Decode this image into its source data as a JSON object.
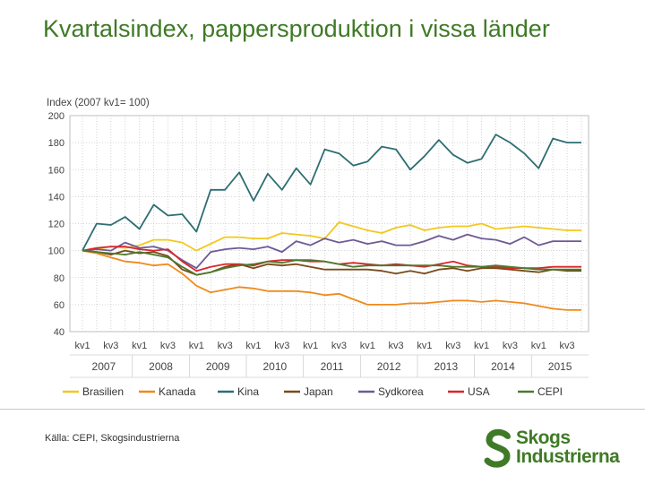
{
  "title": "Kvartalsindex, pappersproduktion i vissa länder",
  "source": "Källa: CEPI, Skogsindustrierna",
  "logo": {
    "line1": "Skogs",
    "line2": "Industrierna"
  },
  "chart_data": {
    "type": "line",
    "ylabel": "Index (2007 kv1= 100)",
    "ylim": [
      40,
      200
    ],
    "yticks": [
      40,
      60,
      80,
      100,
      120,
      140,
      160,
      180,
      200
    ],
    "grid": true,
    "quarter_labels": [
      "kv1",
      "kv3",
      "kv1",
      "kv3",
      "kv1",
      "kv3",
      "kv1",
      "kv3",
      "kv1",
      "kv3",
      "kv1",
      "kv3",
      "kv1",
      "kv3",
      "kv1",
      "kv3",
      "kv1",
      "kv3"
    ],
    "years": [
      "2007",
      "2008",
      "2009",
      "2010",
      "2011",
      "2012",
      "2013",
      "2014",
      "2015"
    ],
    "legend_position": "bottom",
    "series": [
      {
        "name": "Brasilien",
        "color": "#f2c81e",
        "values": [
          100,
          101,
          103,
          102,
          104,
          108,
          108,
          106,
          100,
          105,
          110,
          110,
          109,
          109,
          113,
          112,
          111,
          109,
          121,
          118,
          115,
          113,
          117,
          119,
          115,
          117,
          118,
          118,
          120,
          116,
          117,
          118,
          117,
          116,
          115,
          115
        ]
      },
      {
        "name": "Kanada",
        "color": "#f08a1c",
        "values": [
          100,
          98,
          95,
          92,
          91,
          89,
          90,
          83,
          74,
          69,
          71,
          73,
          72,
          70,
          70,
          70,
          69,
          67,
          68,
          64,
          60,
          60,
          60,
          61,
          61,
          62,
          63,
          63,
          62,
          63,
          62,
          61,
          59,
          57,
          56,
          56
        ]
      },
      {
        "name": "Kina",
        "color": "#2d6e73",
        "values": [
          100,
          120,
          119,
          125,
          116,
          134,
          126,
          127,
          114,
          145,
          145,
          158,
          137,
          157,
          145,
          161,
          149,
          175,
          172,
          163,
          166,
          177,
          175,
          160,
          170,
          182,
          171,
          165,
          168,
          186,
          180,
          172,
          161,
          183,
          180,
          180
        ]
      },
      {
        "name": "Japan",
        "color": "#7a4a1a",
        "values": [
          100,
          99,
          97,
          100,
          98,
          99,
          96,
          86,
          82,
          84,
          88,
          90,
          87,
          90,
          89,
          90,
          88,
          86,
          86,
          86,
          86,
          85,
          83,
          85,
          83,
          86,
          87,
          85,
          87,
          87,
          86,
          85,
          84,
          86,
          85,
          85
        ]
      },
      {
        "name": "Sydkorea",
        "color": "#6e5a94",
        "values": [
          100,
          101,
          100,
          106,
          102,
          103,
          100,
          93,
          87,
          99,
          101,
          102,
          101,
          103,
          99,
          107,
          104,
          109,
          106,
          108,
          105,
          107,
          104,
          104,
          107,
          111,
          108,
          112,
          109,
          108,
          105,
          110,
          104,
          107,
          107,
          107
        ]
      },
      {
        "name": "USA",
        "color": "#d8272a",
        "values": [
          100,
          102,
          103,
          103,
          101,
          100,
          101,
          92,
          85,
          88,
          90,
          90,
          89,
          92,
          93,
          93,
          92,
          92,
          90,
          91,
          90,
          89,
          90,
          89,
          88,
          90,
          92,
          89,
          88,
          88,
          87,
          87,
          87,
          88,
          88,
          88
        ]
      },
      {
        "name": "CEPI",
        "color": "#4c7a2e",
        "values": [
          100,
          99,
          98,
          97,
          99,
          97,
          95,
          88,
          82,
          84,
          87,
          89,
          90,
          92,
          91,
          93,
          93,
          92,
          90,
          88,
          89,
          89,
          89,
          89,
          89,
          89,
          88,
          88,
          88,
          89,
          88,
          87,
          86,
          86,
          86,
          86
        ]
      }
    ]
  }
}
